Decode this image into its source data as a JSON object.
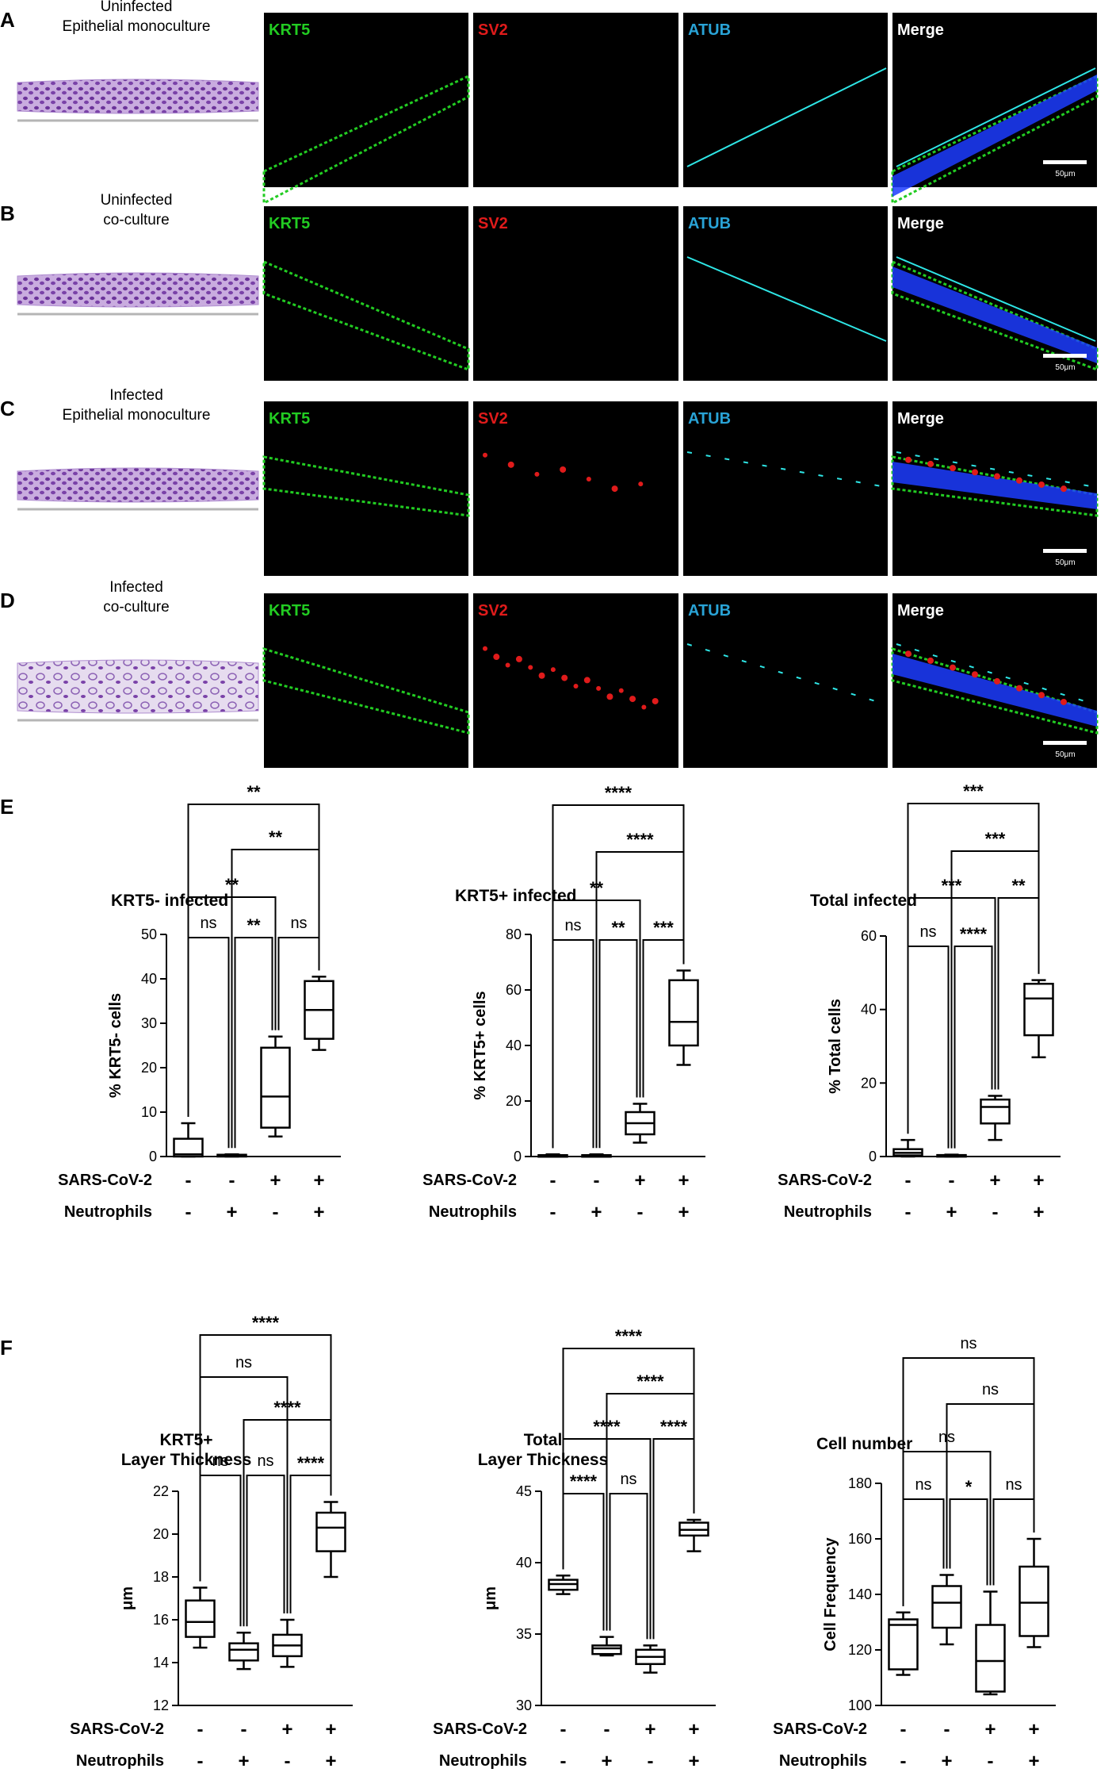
{
  "colors": {
    "krt5": "#22cc22",
    "sv2": "#e01b1b",
    "atub": "#29a3d6",
    "merge": "#ffffff",
    "he_tissue": "#c7a7de",
    "he_nuclei": "#6a2f9a"
  },
  "imaging": {
    "channels": [
      "KRT5",
      "SV2",
      "ATUB",
      "Merge"
    ],
    "scale_bar": "50μm",
    "rows": [
      {
        "letter": "A",
        "condition": [
          "Uninfected",
          "Epithelial monoculture"
        ]
      },
      {
        "letter": "B",
        "condition": [
          "Uninfected",
          "co-culture"
        ]
      },
      {
        "letter": "C",
        "condition": [
          "Infected",
          "Epithelial monoculture"
        ]
      },
      {
        "letter": "D",
        "condition": [
          "Infected",
          "co-culture"
        ]
      }
    ]
  },
  "panels": {
    "E": "E",
    "F": "F"
  },
  "factors": {
    "row1": {
      "name": "SARS-CoV-2",
      "signs": [
        "-",
        "-",
        "+",
        "+"
      ]
    },
    "row2": {
      "name": "Neutrophils",
      "signs": [
        "-",
        "+",
        "-",
        "+"
      ]
    }
  },
  "chart_data": [
    {
      "type": "box",
      "panel": "E",
      "title": [
        "KRT5- infected"
      ],
      "ylabel": "% KRT5- cells",
      "ylim": [
        0,
        50
      ],
      "yticks": [
        0,
        10,
        20,
        30,
        40,
        50
      ],
      "boxes": [
        {
          "min": 0,
          "q1": 0,
          "median": 0.5,
          "q3": 4,
          "max": 7.5
        },
        {
          "min": 0,
          "q1": 0,
          "median": 0.2,
          "q3": 0.4,
          "max": 0.5
        },
        {
          "min": 4.5,
          "q1": 6.5,
          "median": 13.5,
          "q3": 24.5,
          "max": 27
        },
        {
          "min": 24,
          "q1": 26.5,
          "median": 33,
          "q3": 39.5,
          "max": 40.5
        }
      ],
      "brackets": [
        {
          "a": 0,
          "b": 3,
          "label": "**"
        },
        {
          "a": 1,
          "b": 3,
          "label": "**"
        },
        {
          "a": 0,
          "b": 2,
          "label": "**"
        },
        {
          "a": 0,
          "b": 1,
          "label": "ns"
        },
        {
          "a": 1,
          "b": 2,
          "label": "**"
        },
        {
          "a": 2,
          "b": 3,
          "label": "ns"
        }
      ]
    },
    {
      "type": "box",
      "panel": "E",
      "title": [
        "KRT5+ infected"
      ],
      "ylabel": "% KRT5+ cells",
      "ylim": [
        0,
        80
      ],
      "yticks": [
        0,
        20,
        40,
        60,
        80
      ],
      "boxes": [
        {
          "min": 0,
          "q1": 0,
          "median": 0.2,
          "q3": 0.5,
          "max": 0.8
        },
        {
          "min": 0,
          "q1": 0,
          "median": 0.2,
          "q3": 0.5,
          "max": 0.8
        },
        {
          "min": 5,
          "q1": 8,
          "median": 12,
          "q3": 16,
          "max": 19
        },
        {
          "min": 33,
          "q1": 40,
          "median": 48.5,
          "q3": 63.5,
          "max": 67
        }
      ],
      "brackets": [
        {
          "a": 0,
          "b": 3,
          "label": "****"
        },
        {
          "a": 1,
          "b": 3,
          "label": "****"
        },
        {
          "a": 0,
          "b": 2,
          "label": "**"
        },
        {
          "a": 0,
          "b": 1,
          "label": "ns"
        },
        {
          "a": 1,
          "b": 2,
          "label": "**"
        },
        {
          "a": 2,
          "b": 3,
          "label": "***"
        }
      ]
    },
    {
      "type": "box",
      "panel": "E",
      "title": [
        "Total infected"
      ],
      "ylabel": "% Total cells",
      "ylim": [
        0,
        60
      ],
      "yticks": [
        0,
        20,
        40,
        60
      ],
      "boxes": [
        {
          "min": 0,
          "q1": 0.3,
          "median": 1,
          "q3": 2,
          "max": 4.5
        },
        {
          "min": 0,
          "q1": 0,
          "median": 0.2,
          "q3": 0.4,
          "max": 0.5
        },
        {
          "min": 4.5,
          "q1": 9,
          "median": 13.5,
          "q3": 15.5,
          "max": 16.5
        },
        {
          "min": 27,
          "q1": 33,
          "median": 43,
          "q3": 47,
          "max": 48
        }
      ],
      "brackets": [
        {
          "a": 0,
          "b": 3,
          "label": "***"
        },
        {
          "a": 1,
          "b": 3,
          "label": "***"
        },
        {
          "a": 0,
          "b": 2,
          "label": "***"
        },
        {
          "a": 2,
          "b": 3,
          "label": "**"
        },
        {
          "a": 0,
          "b": 1,
          "label": "ns"
        },
        {
          "a": 1,
          "b": 2,
          "label": "****"
        }
      ]
    },
    {
      "type": "box",
      "panel": "F",
      "title": [
        "KRT5+",
        "Layer Thickness"
      ],
      "ylabel": "μm",
      "ylim": [
        12,
        22
      ],
      "yticks": [
        12,
        14,
        16,
        18,
        20,
        22
      ],
      "boxes": [
        {
          "min": 14.7,
          "q1": 15.2,
          "median": 15.9,
          "q3": 16.9,
          "max": 17.5
        },
        {
          "min": 13.7,
          "q1": 14.1,
          "median": 14.6,
          "q3": 14.9,
          "max": 15.4
        },
        {
          "min": 13.8,
          "q1": 14.3,
          "median": 14.8,
          "q3": 15.3,
          "max": 16.0
        },
        {
          "min": 18.0,
          "q1": 19.2,
          "median": 20.3,
          "q3": 21.0,
          "max": 21.5
        }
      ],
      "brackets": [
        {
          "a": 0,
          "b": 3,
          "label": "****"
        },
        {
          "a": 0,
          "b": 2,
          "label": "ns"
        },
        {
          "a": 1,
          "b": 3,
          "label": "****"
        },
        {
          "a": 0,
          "b": 1,
          "label": "ns"
        },
        {
          "a": 1,
          "b": 2,
          "label": "ns"
        },
        {
          "a": 2,
          "b": 3,
          "label": "****"
        }
      ]
    },
    {
      "type": "box",
      "panel": "F",
      "title": [
        "Total",
        "Layer Thickness"
      ],
      "ylabel": "μm",
      "ylim": [
        30,
        45
      ],
      "yticks": [
        30,
        35,
        40,
        45
      ],
      "boxes": [
        {
          "min": 37.8,
          "q1": 38.1,
          "median": 38.5,
          "q3": 38.8,
          "max": 39.1
        },
        {
          "min": 33.5,
          "q1": 33.6,
          "median": 34.0,
          "q3": 34.2,
          "max": 34.8
        },
        {
          "min": 32.3,
          "q1": 32.9,
          "median": 33.4,
          "q3": 33.9,
          "max": 34.2
        },
        {
          "min": 40.8,
          "q1": 41.9,
          "median": 42.3,
          "q3": 42.8,
          "max": 43.0
        }
      ],
      "brackets": [
        {
          "a": 0,
          "b": 3,
          "label": "****"
        },
        {
          "a": 1,
          "b": 3,
          "label": "****"
        },
        {
          "a": 0,
          "b": 2,
          "label": "****"
        },
        {
          "a": 2,
          "b": 3,
          "label": "****"
        },
        {
          "a": 0,
          "b": 1,
          "label": "****"
        },
        {
          "a": 1,
          "b": 2,
          "label": "ns"
        }
      ]
    },
    {
      "type": "box",
      "panel": "F",
      "title": [
        "Cell number"
      ],
      "ylabel": "Cell Frequency",
      "ylim": [
        100,
        180
      ],
      "yticks": [
        100,
        120,
        140,
        160,
        180
      ],
      "boxes": [
        {
          "min": 111,
          "q1": 113,
          "median": 129,
          "q3": 131,
          "max": 133.5
        },
        {
          "min": 122,
          "q1": 128,
          "median": 137,
          "q3": 143,
          "max": 147
        },
        {
          "min": 104,
          "q1": 105,
          "median": 116,
          "q3": 129,
          "max": 141
        },
        {
          "min": 121,
          "q1": 125,
          "median": 137,
          "q3": 150,
          "max": 160
        }
      ],
      "brackets": [
        {
          "a": 0,
          "b": 3,
          "label": "ns"
        },
        {
          "a": 1,
          "b": 3,
          "label": "ns"
        },
        {
          "a": 0,
          "b": 2,
          "label": "ns"
        },
        {
          "a": 0,
          "b": 1,
          "label": "ns"
        },
        {
          "a": 1,
          "b": 2,
          "label": "*"
        },
        {
          "a": 2,
          "b": 3,
          "label": "ns"
        }
      ]
    }
  ]
}
